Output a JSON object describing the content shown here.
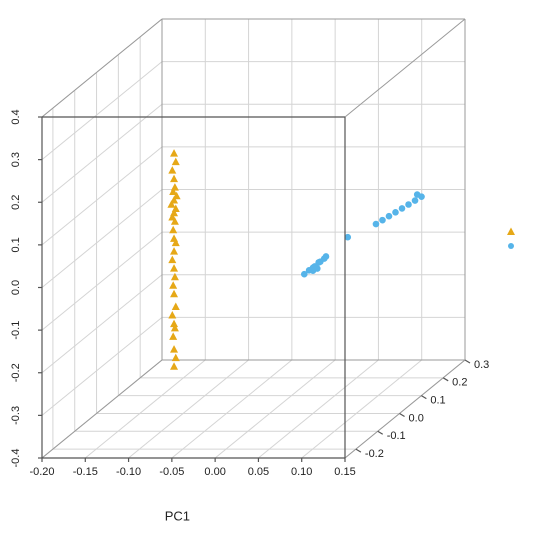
{
  "chart_data": {
    "type": "scatter3d",
    "xlabel": "PC1",
    "xlim": [
      -0.2,
      0.15
    ],
    "ylim": [
      -0.4,
      0.4
    ],
    "zlim": [
      -0.25,
      0.3
    ],
    "xticks": [
      {
        "value": -0.2,
        "label": "-0.20"
      },
      {
        "value": -0.15,
        "label": "-0.15"
      },
      {
        "value": -0.1,
        "label": "-0.10"
      },
      {
        "value": -0.05,
        "label": "-0.05"
      },
      {
        "value": 0,
        "label": "0.00"
      },
      {
        "value": 0.05,
        "label": "0.05"
      },
      {
        "value": 0.1,
        "label": "0.10"
      },
      {
        "value": 0.15,
        "label": "0.15"
      }
    ],
    "yticks": [
      -0.4,
      -0.3,
      -0.2,
      -0.1,
      {
        "value": 0,
        "label": "0.0"
      },
      0.1,
      0.2,
      0.3,
      0.4
    ],
    "zticks": [
      -0.2,
      -0.1,
      {
        "value": 0,
        "label": "0.0"
      },
      0.1,
      0.2,
      0.3
    ],
    "grid": true,
    "series": [
      {
        "color": "#e6a817",
        "marker": "triangle",
        "x": [
          -0.05,
          -0.048,
          -0.052,
          -0.05,
          -0.049,
          -0.051,
          -0.047,
          -0.05,
          -0.053,
          -0.048,
          -0.05,
          -0.052,
          -0.049,
          -0.051,
          -0.05,
          -0.048,
          -0.05,
          -0.052,
          -0.05,
          -0.049,
          -0.051,
          -0.05,
          -0.048,
          -0.052,
          -0.05,
          -0.049,
          -0.051,
          -0.05,
          -0.048,
          -0.05
        ],
        "y": [
          0.31,
          0.29,
          0.27,
          0.25,
          0.23,
          0.22,
          0.21,
          0.2,
          0.19,
          0.18,
          0.17,
          0.16,
          0.15,
          0.13,
          0.11,
          0.1,
          0.08,
          0.06,
          0.04,
          0.02,
          0.0,
          -0.02,
          -0.05,
          -0.07,
          -0.09,
          -0.1,
          -0.12,
          -0.15,
          -0.17,
          -0.19
        ],
        "z": [
          -0.24,
          -0.24,
          -0.24,
          -0.24,
          -0.24,
          -0.24,
          -0.24,
          -0.24,
          -0.24,
          -0.24,
          -0.24,
          -0.24,
          -0.24,
          -0.24,
          -0.24,
          -0.24,
          -0.24,
          -0.24,
          -0.24,
          -0.24,
          -0.24,
          -0.24,
          -0.24,
          -0.24,
          -0.24,
          -0.24,
          -0.24,
          -0.24,
          -0.24,
          -0.24
        ]
      },
      {
        "color": "#56b4e9",
        "marker": "circle",
        "x": [
          0.045,
          0.048,
          0.05,
          0.052,
          0.054,
          0.056,
          0.058,
          0.06,
          0.05,
          0.055,
          0.07,
          0.09,
          0.095,
          0.1,
          0.105,
          0.11,
          0.115,
          0.12,
          0.125,
          0.12
        ],
        "y": [
          -0.065,
          -0.06,
          -0.058,
          -0.055,
          -0.05,
          -0.048,
          -0.045,
          -0.04,
          -0.065,
          -0.06,
          -0.02,
          -0.01,
          -0.005,
          0.0,
          0.005,
          0.01,
          0.015,
          0.02,
          0.025,
          0.03
        ],
        "z": [
          -0.02,
          -0.01,
          0.0,
          0.0,
          0.01,
          0.01,
          0.02,
          0.02,
          0.0,
          0.0,
          0.08,
          0.13,
          0.14,
          0.15,
          0.16,
          0.17,
          0.18,
          0.19,
          0.2,
          0.2
        ]
      }
    ]
  }
}
